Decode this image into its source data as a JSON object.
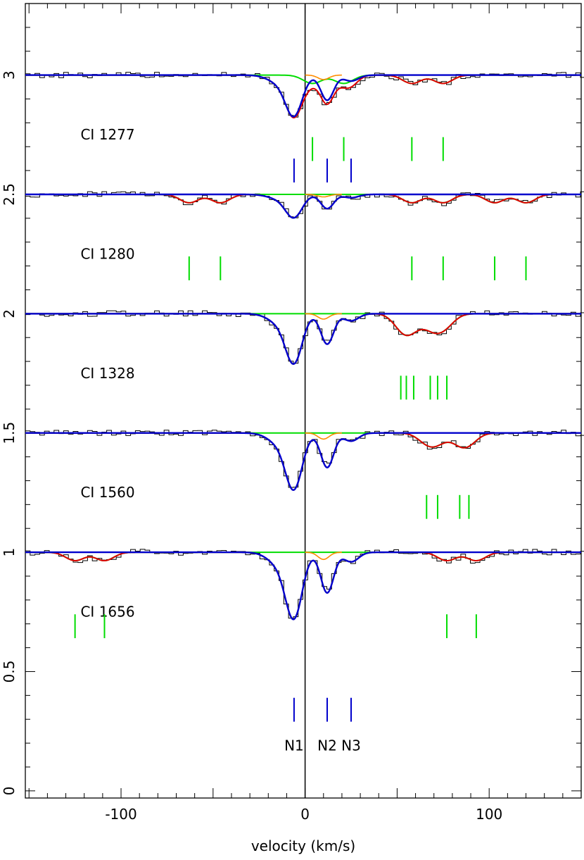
{
  "chart_data": {
    "type": "line",
    "title": "",
    "xlabel": "velocity (km/s)",
    "ylabel": "",
    "xlim": [
      -152,
      150
    ],
    "ylim": [
      -0.03,
      3.3
    ],
    "x_ticks": [
      -100,
      0,
      100
    ],
    "y_ticks": [
      0,
      0.5,
      1,
      1.5,
      2,
      2.5,
      3
    ],
    "y_tick_labels": [
      "0",
      "0.5",
      "1",
      "1.5",
      "2",
      "2.5",
      "3"
    ],
    "zero_line_x": 0,
    "colors": {
      "observed": "#000000",
      "total_fit": "#e00000",
      "CI_fit": "#0000cc",
      "other_absorbers": "#00dd00",
      "fine_structure": "#ff8c00",
      "blend": "#555555"
    },
    "panels": [
      {
        "label": "CI 1277",
        "offset": 3.0,
        "depth": 0.62,
        "green_marks": [
          4,
          21,
          58,
          75
        ],
        "blue_marks": [
          -6,
          12,
          25
        ]
      },
      {
        "label": "CI 1280",
        "offset": 2.5,
        "depth": 0.35,
        "green_marks": [
          -63,
          -46,
          58,
          75,
          103,
          120
        ],
        "blue_marks": []
      },
      {
        "label": "CI 1328",
        "offset": 2.0,
        "depth": 0.75,
        "green_marks": [
          52,
          55,
          59,
          68,
          72,
          77
        ],
        "blue_marks": []
      },
      {
        "label": "CI 1560",
        "offset": 1.5,
        "depth": 0.85,
        "green_marks": [
          66,
          72,
          84,
          89
        ],
        "blue_marks": []
      },
      {
        "label": "CI 1656",
        "offset": 1.0,
        "depth": 1.0,
        "green_marks": [
          -125,
          -109,
          77,
          93
        ],
        "blue_marks": []
      }
    ],
    "components": {
      "velocities": [
        -6,
        12,
        25
      ],
      "labels": [
        "N1",
        "N2",
        "N3"
      ]
    }
  }
}
